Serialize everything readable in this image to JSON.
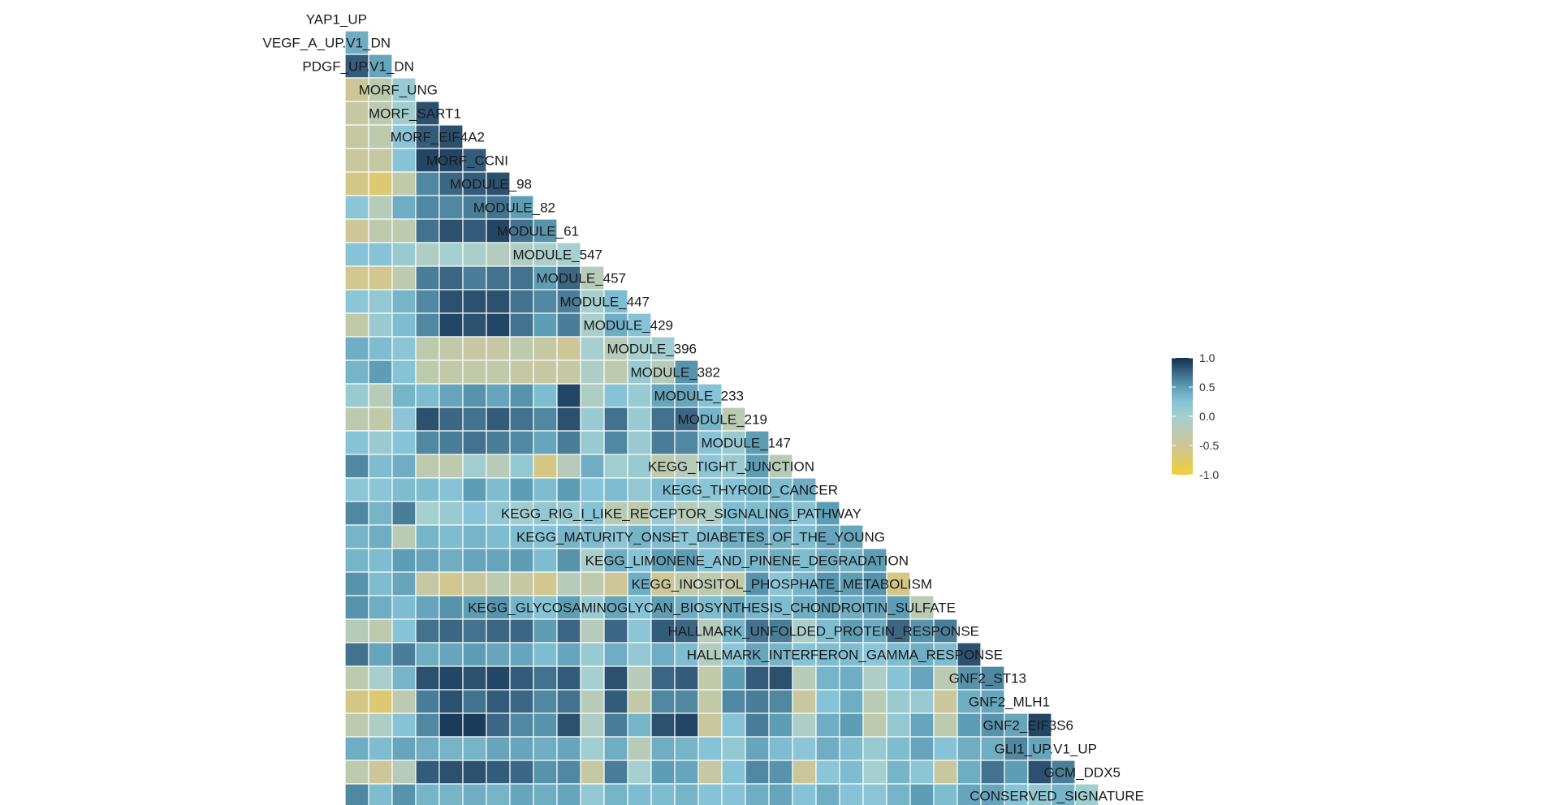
{
  "chart_data": {
    "type": "heatmap",
    "title": "",
    "xlabel": "",
    "ylabel": "",
    "color_scale": {
      "domain": [
        -1,
        1
      ],
      "stops": [
        {
          "value": -1.0,
          "color": "#F2CD3A"
        },
        {
          "value": -0.5,
          "color": "#CDC698"
        },
        {
          "value": 0.0,
          "color": "#A6CFCF"
        },
        {
          "value": 0.25,
          "color": "#86C3D6"
        },
        {
          "value": 0.5,
          "color": "#5E9EB4"
        },
        {
          "value": 0.75,
          "color": "#3B6785"
        },
        {
          "value": 1.0,
          "color": "#12304F"
        }
      ],
      "ticks": [
        "1.0",
        "0.5",
        "0.0",
        "-0.5",
        "-1.0"
      ],
      "tick_values": [
        1.0,
        0.5,
        0.0,
        -0.5,
        -1.0
      ]
    },
    "grid_color": "#ffffff",
    "variables": [
      "YAP1_UP",
      "VEGF_A_UP.V1_DN",
      "PDGF_UP.V1_DN",
      "MORF_UNG",
      "MORF_SART1",
      "MORF_EIF4A2",
      "MORF_CCNI",
      "MODULE_98",
      "MODULE_82",
      "MODULE_61",
      "MODULE_547",
      "MODULE_457",
      "MODULE_447",
      "MODULE_429",
      "MODULE_396",
      "MODULE_382",
      "MODULE_233",
      "MODULE_219",
      "MODULE_147",
      "KEGG_TIGHT_JUNCTION",
      "KEGG_THYROID_CANCER",
      "KEGG_RIG_I_LIKE_RECEPTOR_SIGNALING_PATHWAY",
      "KEGG_MATURITY_ONSET_DIABETES_OF_THE_YOUNG",
      "KEGG_LIMONENE_AND_PINENE_DEGRADATION",
      "KEGG_INOSITOL_PHOSPHATE_METABOLISM",
      "KEGG_GLYCOSAMINOGLYCAN_BIOSYNTHESIS_CHONDROITIN_SULFATE",
      "HALLMARK_UNFOLDED_PROTEIN_RESPONSE",
      "HALLMARK_INTERFERON_GAMMA_RESPONSE",
      "GNF2_ST13",
      "GNF2_MLH1",
      "GNF2_EIF3S6",
      "GLI1_UP.V1_UP",
      "GCM_DDX5",
      "CONSERVED_SIGNATURE"
    ],
    "values": [
      [],
      [
        0.4
      ],
      [
        0.8,
        0.45
      ],
      [
        -0.5,
        -0.3,
        0.1
      ],
      [
        -0.4,
        -0.3,
        0.05,
        0.85
      ],
      [
        -0.4,
        -0.3,
        0.2,
        0.8,
        0.85
      ],
      [
        -0.45,
        -0.4,
        0.25,
        0.9,
        0.9,
        0.8
      ],
      [
        -0.6,
        -0.7,
        -0.35,
        0.6,
        0.75,
        0.8,
        0.85
      ],
      [
        0.2,
        -0.2,
        0.4,
        0.6,
        0.6,
        0.65,
        0.7,
        0.5
      ],
      [
        -0.5,
        -0.3,
        -0.3,
        0.7,
        0.85,
        0.8,
        0.9,
        0.7,
        0.55
      ],
      [
        0.25,
        0.25,
        0.1,
        -0.1,
        0.0,
        -0.05,
        -0.15,
        -0.1,
        -0.05,
        0.0
      ],
      [
        -0.55,
        -0.55,
        -0.3,
        0.65,
        0.75,
        0.65,
        0.7,
        0.7,
        0.5,
        0.75,
        -0.2
      ],
      [
        0.2,
        0.15,
        0.35,
        0.6,
        0.85,
        0.85,
        0.85,
        0.7,
        0.6,
        0.65,
        0.0,
        0.3
      ],
      [
        -0.35,
        0.1,
        0.3,
        0.6,
        0.9,
        0.85,
        0.9,
        0.7,
        0.5,
        0.65,
        -0.05,
        0.4,
        0.25
      ],
      [
        0.4,
        0.3,
        0.2,
        -0.3,
        -0.35,
        -0.4,
        -0.4,
        -0.3,
        -0.4,
        -0.5,
        0.0,
        -0.2,
        0.0,
        0.05
      ],
      [
        0.35,
        0.5,
        0.25,
        -0.3,
        -0.35,
        -0.35,
        -0.35,
        -0.4,
        -0.4,
        -0.4,
        -0.1,
        -0.3,
        0.1,
        -0.2,
        0.55
      ],
      [
        0.1,
        -0.2,
        0.35,
        0.3,
        0.45,
        0.55,
        0.45,
        0.55,
        0.3,
        0.9,
        -0.1,
        0.25,
        0.1,
        0.45,
        0.45,
        0.25
      ],
      [
        -0.3,
        -0.35,
        0.2,
        0.85,
        0.75,
        0.7,
        0.8,
        0.7,
        0.6,
        0.85,
        0.1,
        0.7,
        0.1,
        0.7,
        0.75,
        0.35,
        -0.25
      ],
      [
        0.25,
        0.1,
        0.25,
        0.6,
        0.65,
        0.7,
        0.65,
        0.6,
        0.45,
        0.65,
        0.1,
        0.6,
        0.1,
        0.65,
        0.6,
        0.25,
        0.1,
        0.5
      ],
      [
        0.6,
        0.3,
        0.4,
        -0.3,
        -0.3,
        0.05,
        -0.2,
        0.15,
        -0.6,
        -0.2,
        0.4,
        0.05,
        0.1,
        -0.3,
        -0.2,
        0.2,
        0.1,
        0.5,
        -0.2
      ],
      [
        0.2,
        0.2,
        0.3,
        0.3,
        0.25,
        0.5,
        0.3,
        0.5,
        0.3,
        0.5,
        0.25,
        0.3,
        0.15,
        0.3,
        0.25,
        0.2,
        0.25,
        0.35,
        0.3,
        0.4
      ],
      [
        0.6,
        0.35,
        0.65,
        0.0,
        0.1,
        0.25,
        0.15,
        0.05,
        0.15,
        0.1,
        0.25,
        -0.25,
        -0.3,
        0.1,
        -0.2,
        -0.1,
        0.3,
        0.3,
        0.4,
        0.25,
        0.5
      ],
      [
        0.35,
        0.4,
        -0.25,
        0.35,
        0.3,
        0.35,
        0.3,
        0.3,
        0.25,
        0.35,
        0.3,
        0.2,
        0.35,
        0.3,
        0.2,
        0.3,
        0.4,
        0.45,
        0.35,
        0.3,
        0.45,
        0.45
      ],
      [
        0.35,
        0.3,
        0.5,
        0.45,
        0.4,
        0.45,
        0.45,
        0.5,
        0.3,
        0.55,
        -0.05,
        0.4,
        0.25,
        0.5,
        0.5,
        0.25,
        0.3,
        0.35,
        0.4,
        0.3,
        0.4,
        0.35,
        0.5
      ],
      [
        0.55,
        0.3,
        0.45,
        -0.4,
        -0.55,
        -0.45,
        -0.3,
        -0.4,
        -0.55,
        -0.2,
        -0.3,
        -0.5,
        0.4,
        -0.5,
        -0.35,
        -0.3,
        -0.35,
        0.55,
        0.2,
        0.35,
        0.55,
        0.5,
        0.55,
        -0.6
      ],
      [
        0.55,
        0.4,
        0.3,
        0.45,
        0.55,
        0.5,
        0.55,
        0.35,
        0.25,
        0.5,
        0.1,
        0.45,
        0.25,
        0.5,
        0.4,
        0.3,
        0.45,
        0.35,
        0.3,
        0.4,
        0.5,
        0.4,
        0.45,
        0.5,
        -0.25
      ],
      [
        -0.2,
        -0.3,
        0.25,
        0.7,
        0.75,
        0.7,
        0.75,
        0.75,
        0.5,
        0.75,
        -0.2,
        0.75,
        0.2,
        0.8,
        0.75,
        -0.2,
        0.35,
        0.7,
        0.65,
        -0.05,
        0.3,
        0.5,
        0.4,
        0.75,
        0.55,
        0.65
      ],
      [
        0.7,
        0.45,
        0.65,
        0.4,
        0.45,
        0.5,
        0.45,
        0.45,
        0.3,
        0.45,
        0.1,
        0.4,
        0.15,
        0.4,
        0.3,
        -0.15,
        0.2,
        0.45,
        0.35,
        0.25,
        0.3,
        0.3,
        0.2,
        0.3,
        0.4,
        0.3,
        0.85
      ],
      [
        -0.3,
        -0.05,
        0.35,
        0.85,
        0.9,
        0.85,
        0.9,
        0.8,
        0.7,
        0.8,
        0.0,
        0.85,
        -0.2,
        0.75,
        0.8,
        -0.35,
        0.5,
        0.8,
        0.85,
        -0.2,
        0.35,
        0.4,
        -0.1,
        0.25,
        0.45,
        -0.25,
        0.55,
        0.6
      ],
      [
        -0.6,
        -0.7,
        -0.3,
        0.65,
        0.85,
        0.7,
        0.8,
        0.75,
        0.6,
        0.7,
        -0.2,
        0.8,
        -0.35,
        0.6,
        0.6,
        -0.35,
        0.6,
        0.65,
        0.6,
        -0.45,
        0.25,
        0.4,
        -0.25,
        0.1,
        0.1,
        -0.45,
        0.4,
        0.45
      ],
      [
        -0.3,
        -0.1,
        0.25,
        0.6,
        0.95,
        0.95,
        0.75,
        0.6,
        0.55,
        0.85,
        -0.1,
        0.65,
        0.35,
        0.85,
        0.9,
        -0.45,
        0.25,
        0.65,
        0.5,
        -0.1,
        0.4,
        0.5,
        -0.3,
        0.15,
        0.45,
        -0.3,
        0.5,
        0.55,
        0.45,
        0.9
      ],
      [
        0.4,
        0.3,
        0.45,
        0.4,
        0.35,
        0.35,
        0.45,
        0.45,
        0.4,
        0.45,
        0.05,
        0.4,
        -0.2,
        0.4,
        0.35,
        0.25,
        0.15,
        0.45,
        0.3,
        0.2,
        0.4,
        0.3,
        0.1,
        0.3,
        0.45,
        0.25,
        0.4,
        0.4,
        0.6,
        0.45
      ],
      [
        -0.3,
        -0.5,
        -0.2,
        0.8,
        0.85,
        0.85,
        0.8,
        0.75,
        0.55,
        0.6,
        -0.4,
        0.65,
        0.0,
        0.5,
        0.45,
        -0.4,
        0.25,
        0.6,
        0.55,
        -0.5,
        0.2,
        0.3,
        0.0,
        0.35,
        0.2,
        -0.45,
        0.4,
        0.7,
        0.5,
        0.85,
        0.65
      ],
      [
        0.6,
        0.3,
        0.55,
        0.35,
        0.35,
        0.4,
        0.35,
        0.45,
        0.4,
        0.45,
        0.15,
        0.35,
        0.3,
        0.3,
        0.35,
        0.25,
        0.25,
        0.4,
        0.45,
        0.25,
        0.4,
        0.25,
        0.2,
        0.35,
        0.5,
        0.3,
        0.45,
        0.45,
        0.25,
        0.15,
        0.35,
        0.05
      ]
    ]
  }
}
